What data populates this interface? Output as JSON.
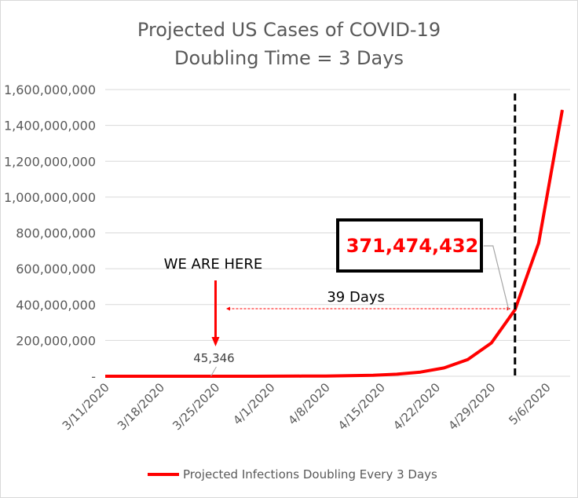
{
  "chart_data": {
    "type": "line",
    "title": "Projected US Cases of COVID-19",
    "subtitle": "Doubling Time = 3 Days",
    "xlabel": "",
    "ylabel": "",
    "ylim": [
      0,
      1600000000
    ],
    "y_ticks": [
      0,
      200000000,
      400000000,
      600000000,
      800000000,
      1000000000,
      1200000000,
      1400000000,
      1600000000
    ],
    "y_tick_labels": [
      "-",
      "200,000,000",
      "400,000,000",
      "600,000,000",
      "800,000,000",
      "1,000,000,000",
      "1,200,000,000",
      "1,400,000,000",
      "1,600,000,000"
    ],
    "x_tick_labels": [
      "3/11/2020",
      "3/18/2020",
      "3/25/2020",
      "4/1/2020",
      "4/8/2020",
      "4/15/2020",
      "4/22/2020",
      "4/29/2020",
      "5/6/2020"
    ],
    "x_tick_dates": [
      "2020-03-11",
      "2020-03-18",
      "2020-03-25",
      "2020-04-01",
      "2020-04-08",
      "2020-04-15",
      "2020-04-22",
      "2020-04-29",
      "2020-05-06"
    ],
    "xlim": [
      "2020-03-11",
      "2020-05-09"
    ],
    "grid": "horizontal",
    "legend_position": "bottom",
    "series": [
      {
        "name": "Projected Infections Doubling Every 3 Days",
        "color": "#ff0000",
        "x": [
          "2020-03-24",
          "2020-03-27",
          "2020-03-30",
          "2020-04-02",
          "2020-04-05",
          "2020-04-08",
          "2020-04-11",
          "2020-04-14",
          "2020-04-17",
          "2020-04-20",
          "2020-04-23",
          "2020-04-26",
          "2020-04-29",
          "2020-05-02",
          "2020-05-05",
          "2020-05-08"
        ],
        "y": [
          45346,
          90692,
          181384,
          362768,
          725536,
          1451072,
          2902144,
          5804288,
          11608576,
          23217152,
          46434304,
          92868608,
          185737216,
          371474432,
          742948864,
          1485897728
        ]
      }
    ],
    "annotations": {
      "we_are_here": {
        "text": "WE ARE HERE",
        "date": "2020-03-25"
      },
      "start_value": {
        "text": "45,346",
        "date": "2020-03-25"
      },
      "duration": {
        "text": "39 Days",
        "from": "2020-03-24",
        "to": "2020-05-02"
      },
      "target_value": {
        "text": "371,474,432",
        "date": "2020-05-02",
        "value": 371474432
      }
    }
  }
}
